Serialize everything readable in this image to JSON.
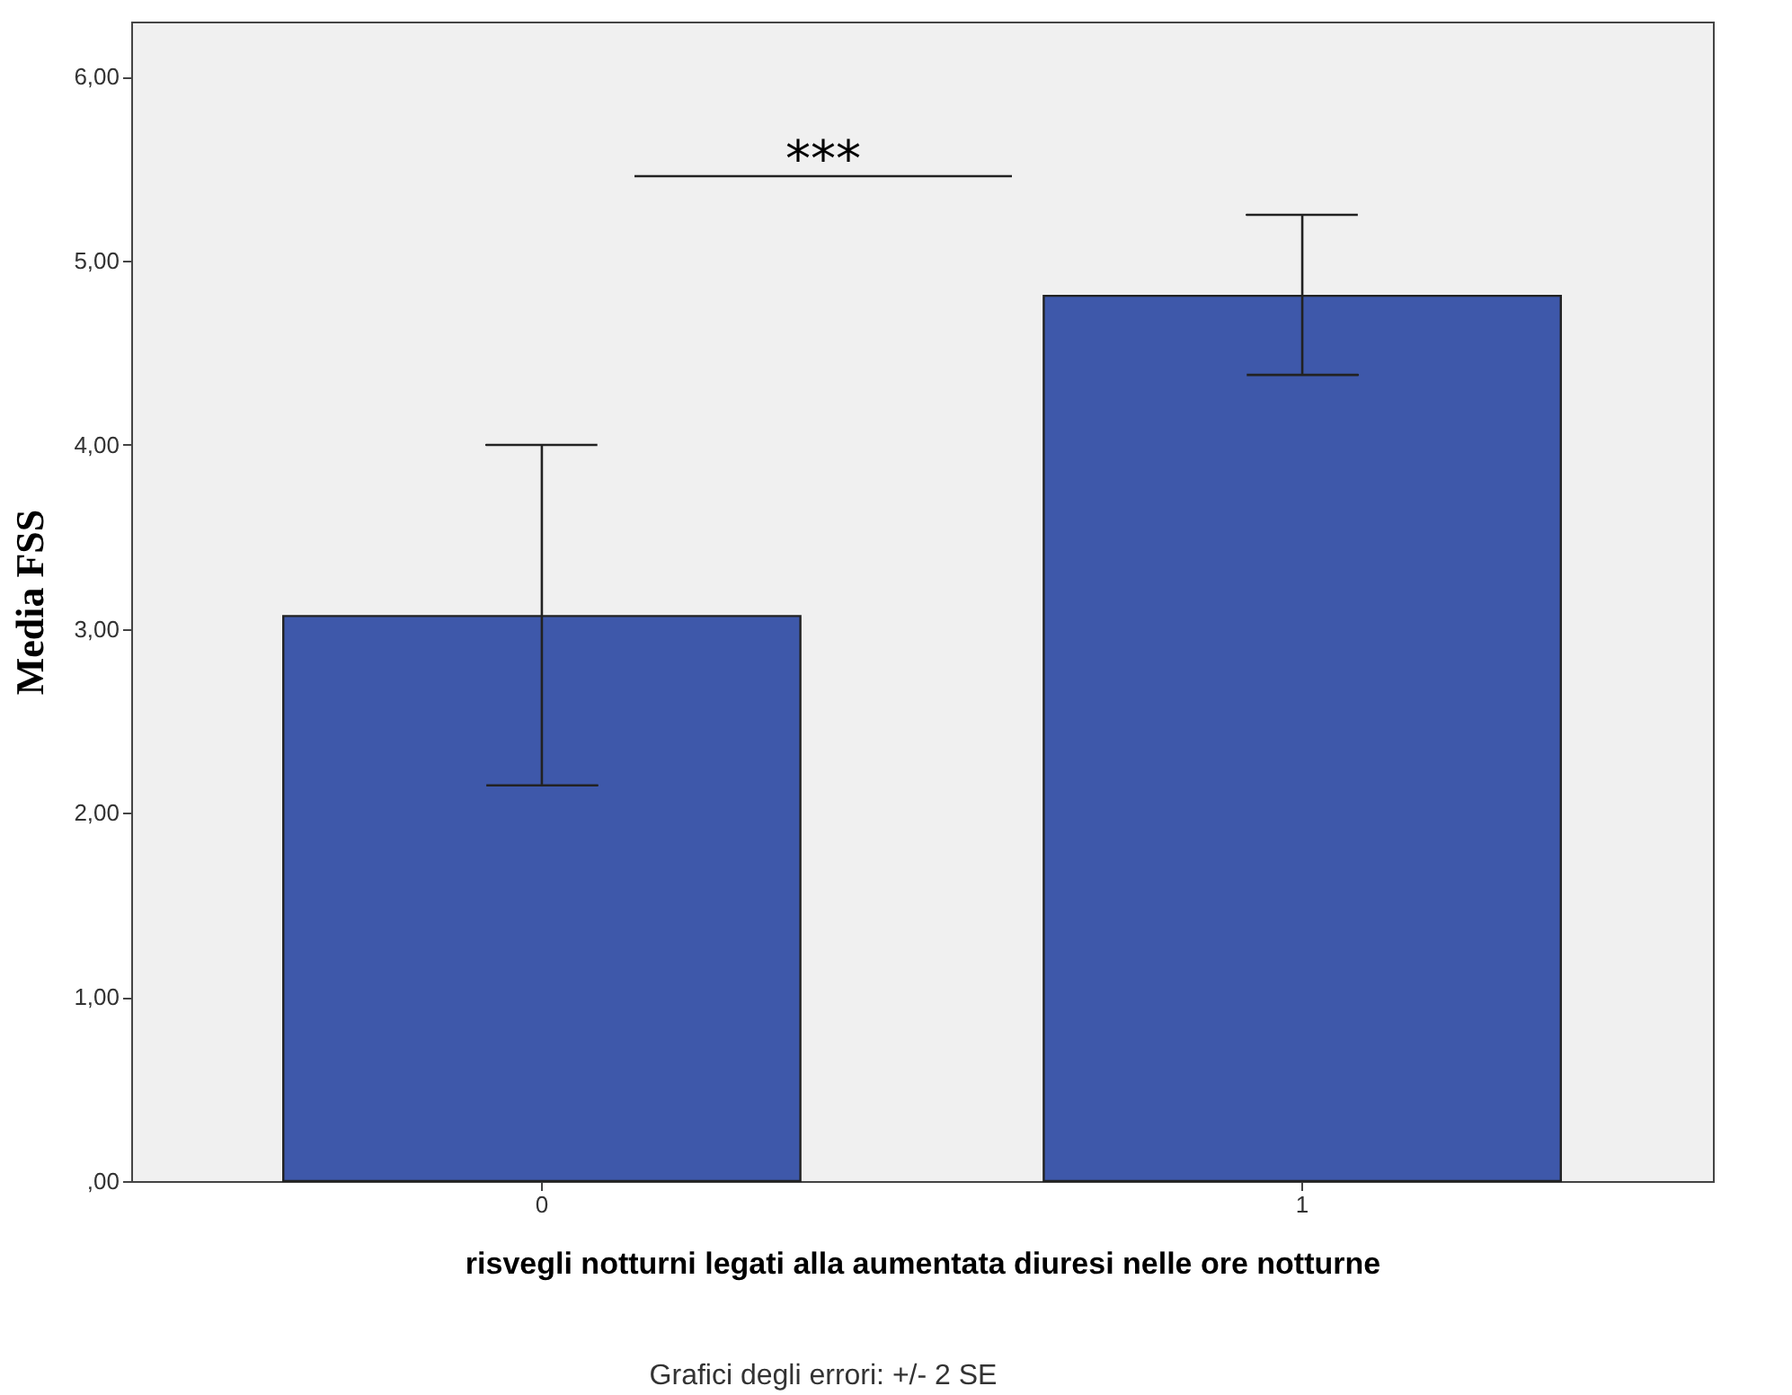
{
  "chart_data": {
    "type": "bar",
    "categories": [
      "0",
      "1"
    ],
    "values": [
      3.07,
      4.81
    ],
    "errors": [
      [
        2.15,
        4.0
      ],
      [
        4.38,
        5.25
      ]
    ],
    "color": "#3e58aa",
    "xlabel": "risvegli notturni legati alla aumentata diuresi nelle ore notturne",
    "ylabel": "Media FSS",
    "ylim": [
      0,
      6.3
    ],
    "yticks": [
      {
        "value": 0,
        "label": ",00"
      },
      {
        "value": 1,
        "label": "1,00"
      },
      {
        "value": 2,
        "label": "2,00"
      },
      {
        "value": 3,
        "label": "3,00"
      },
      {
        "value": 4,
        "label": "4,00"
      },
      {
        "value": 5,
        "label": "5,00"
      },
      {
        "value": 6,
        "label": "6,00"
      }
    ],
    "grid": false,
    "annotations": [
      "***",
      "Grafici degli errori: +/- 2 SE"
    ]
  }
}
